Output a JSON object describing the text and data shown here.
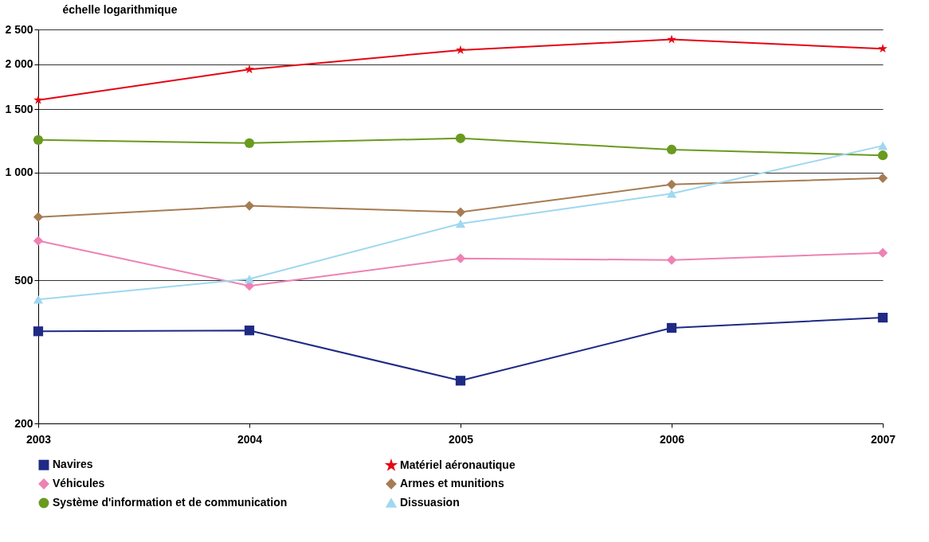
{
  "chart_data": {
    "type": "line",
    "ylabel": "échelle logarithmique",
    "x": [
      2003,
      2004,
      2005,
      2006,
      2007
    ],
    "xlim": [
      2003,
      2007
    ],
    "xticks": [
      2003,
      2004,
      2005,
      2006,
      2007
    ],
    "log": true,
    "ylim": [
      200,
      2500
    ],
    "yticks": [
      200,
      500,
      {
        "value": 1000,
        "label": "1 000"
      },
      {
        "value": 1500,
        "label": "1 500"
      },
      {
        "value": 2000,
        "label": "2 000"
      },
      {
        "value": 2500,
        "label": "2 500"
      }
    ],
    "grid": "y",
    "legend": "bottom",
    "series": [
      {
        "name": "Navires",
        "color": "#1f2a85",
        "marker": "square",
        "values": [
          361,
          363,
          263,
          369,
          394
        ]
      },
      {
        "name": "Matériel aéronautique",
        "color": "#e30613",
        "marker": "star",
        "values": [
          1590,
          1935,
          2190,
          2345,
          2210
        ]
      },
      {
        "name": "Véhicules",
        "color": "#ee82b4",
        "marker": "diamond",
        "values": [
          645,
          483,
          576,
          570,
          597
        ]
      },
      {
        "name": "Armes et munitions",
        "color": "#a67c52",
        "marker": "diamond",
        "values": [
          751,
          807,
          775,
          925,
          964
        ]
      },
      {
        "name": "Système d'information et de communication",
        "color": "#6a9a1f",
        "marker": "circle",
        "values": [
          1231,
          1206,
          1244,
          1157,
          1115
        ]
      },
      {
        "name": "Dissuasion",
        "color": "#9fd8ef",
        "marker": "triangle",
        "values": [
          443,
          505,
          720,
          873,
          1186
        ]
      }
    ]
  }
}
